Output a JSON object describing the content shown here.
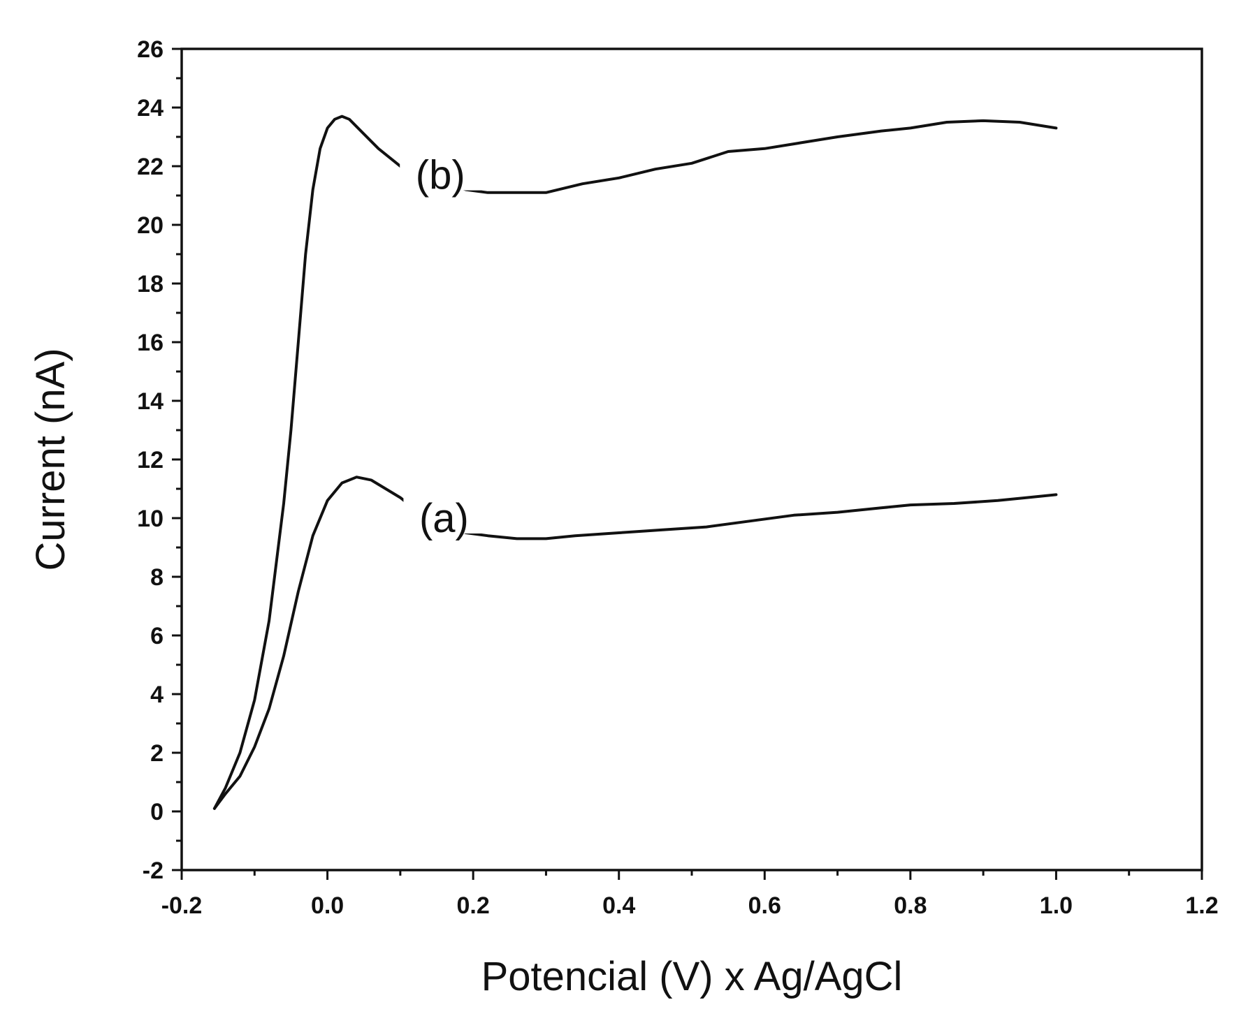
{
  "chart_data": {
    "type": "line",
    "title": "",
    "xlabel": "Potencial (V) x Ag/AgCl",
    "ylabel": "Current (nA)",
    "xlim": [
      -0.2,
      1.2
    ],
    "ylim": [
      -2,
      26
    ],
    "x_ticks": [
      -0.2,
      0.0,
      0.2,
      0.4,
      0.6,
      0.8,
      1.0,
      1.2
    ],
    "x_tick_labels": [
      "-0.2",
      "0.0",
      "0.2",
      "0.4",
      "0.6",
      "0.8",
      "1.0",
      "1.2"
    ],
    "y_ticks": [
      -2,
      0,
      2,
      4,
      6,
      8,
      10,
      12,
      14,
      16,
      18,
      20,
      22,
      24,
      26
    ],
    "y_tick_labels": [
      "-2",
      "0",
      "2",
      "4",
      "6",
      "8",
      "10",
      "12",
      "14",
      "16",
      "18",
      "20",
      "22",
      "24",
      "26"
    ],
    "grid": false,
    "series": [
      {
        "name": "(a)",
        "label_at": [
          0.16,
          10.0
        ],
        "x": [
          -0.155,
          -0.14,
          -0.12,
          -0.1,
          -0.08,
          -0.06,
          -0.04,
          -0.02,
          0.0,
          0.02,
          0.04,
          0.06,
          0.08,
          0.1,
          0.12,
          0.19,
          0.22,
          0.26,
          0.3,
          0.34,
          0.4,
          0.46,
          0.52,
          0.58,
          0.64,
          0.7,
          0.76,
          0.8,
          0.86,
          0.92,
          0.96,
          1.0
        ],
        "y": [
          0.1,
          0.6,
          1.2,
          2.2,
          3.5,
          5.3,
          7.5,
          9.4,
          10.6,
          11.2,
          11.4,
          11.3,
          11.0,
          10.7,
          10.3,
          9.5,
          9.4,
          9.3,
          9.3,
          9.4,
          9.5,
          9.6,
          9.7,
          9.9,
          10.1,
          10.2,
          10.35,
          10.45,
          10.5,
          10.6,
          10.7,
          10.8
        ]
      },
      {
        "name": "(b)",
        "label_at": [
          0.155,
          21.7
        ],
        "x": [
          -0.155,
          -0.14,
          -0.12,
          -0.1,
          -0.08,
          -0.06,
          -0.05,
          -0.04,
          -0.03,
          -0.02,
          -0.01,
          0.0,
          0.01,
          0.02,
          0.03,
          0.05,
          0.07,
          0.09,
          0.11,
          0.19,
          0.22,
          0.26,
          0.3,
          0.35,
          0.4,
          0.45,
          0.5,
          0.55,
          0.6,
          0.65,
          0.7,
          0.76,
          0.8,
          0.85,
          0.9,
          0.95,
          1.0
        ],
        "y": [
          0.1,
          0.8,
          2.0,
          3.8,
          6.5,
          10.5,
          13.0,
          16.0,
          19.0,
          21.2,
          22.6,
          23.3,
          23.6,
          23.7,
          23.6,
          23.1,
          22.6,
          22.2,
          21.8,
          21.2,
          21.1,
          21.1,
          21.1,
          21.4,
          21.6,
          21.9,
          22.1,
          22.5,
          22.6,
          22.8,
          23.0,
          23.2,
          23.3,
          23.5,
          23.55,
          23.5,
          23.3
        ]
      }
    ]
  }
}
